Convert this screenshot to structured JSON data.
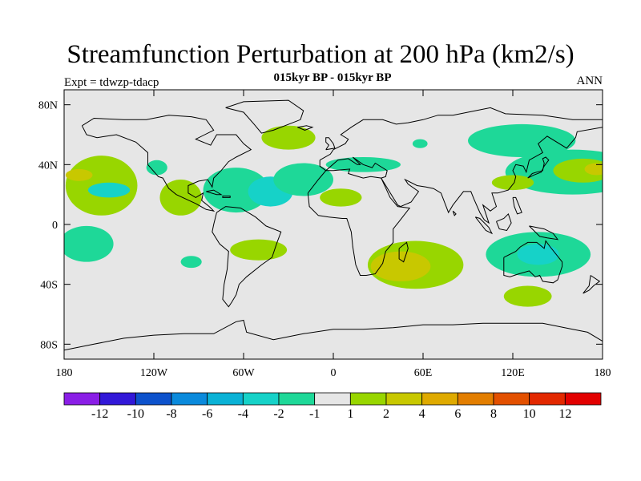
{
  "chart_data": {
    "type": "heatmap",
    "title": "Streamfunction Perturbation at 200 hPa (km2/s)",
    "subtitle": "015kyr BP - 015kyr BP",
    "left_label": "Expt = tdwzp-tdacp",
    "right_label": "ANN",
    "xlabel": "",
    "ylabel": "",
    "x_range": [
      -180,
      180
    ],
    "y_range": [
      -90,
      90
    ],
    "x_ticks": [
      {
        "value": -180,
        "label": "180"
      },
      {
        "value": -120,
        "label": "120W"
      },
      {
        "value": -60,
        "label": "60W"
      },
      {
        "value": 0,
        "label": "0"
      },
      {
        "value": 60,
        "label": "60E"
      },
      {
        "value": 120,
        "label": "120E"
      },
      {
        "value": 180,
        "label": "180"
      }
    ],
    "y_ticks": [
      {
        "value": 80,
        "label": "80N"
      },
      {
        "value": 40,
        "label": "40N"
      },
      {
        "value": 0,
        "label": "0"
      },
      {
        "value": -40,
        "label": "40S"
      },
      {
        "value": -80,
        "label": "80S"
      }
    ],
    "colorbar": {
      "labels": [
        "-12",
        "-10",
        "-8",
        "-6",
        "-4",
        "-2",
        "-1",
        "1",
        "2",
        "4",
        "6",
        "8",
        "10",
        "12"
      ],
      "colors": [
        "#8a1ee6",
        "#3218d8",
        "#0d52cc",
        "#0a8adc",
        "#0ab2d6",
        "#16d2c8",
        "#1ed898",
        "#e6e6e6",
        "#98d600",
        "#c8c800",
        "#dfaa00",
        "#e37e00",
        "#e35000",
        "#e32800",
        "#e20000"
      ]
    },
    "background_color": "#e6e6e6",
    "anomaly_regions": [
      {
        "name": "north-pacific-east",
        "lon": -155,
        "lat": 26,
        "rx": 24,
        "ry": 20,
        "level": 1
      },
      {
        "name": "north-pacific-east-core",
        "lon": -170,
        "lat": 33,
        "rx": 9,
        "ry": 4,
        "level": 2
      },
      {
        "name": "pacific-dateline-north",
        "lon": -150,
        "lat": 23,
        "rx": 14,
        "ry": 5,
        "level": -2
      },
      {
        "name": "east-pacific-blob",
        "lon": -118,
        "lat": 38,
        "rx": 7,
        "ry": 5,
        "level": -1
      },
      {
        "name": "central-america",
        "lon": -102,
        "lat": 18,
        "rx": 14,
        "ry": 12,
        "level": 1
      },
      {
        "name": "caribbean-atlantic",
        "lon": -65,
        "lat": 23,
        "rx": 22,
        "ry": 15,
        "level": -1
      },
      {
        "name": "tropical-atlantic-core",
        "lon": -42,
        "lat": 22,
        "rx": 15,
        "ry": 10,
        "level": -2
      },
      {
        "name": "north-atlantic-band",
        "lon": -20,
        "lat": 30,
        "rx": 20,
        "ry": 11,
        "level": -1
      },
      {
        "name": "mediterranean-band",
        "lon": 20,
        "lat": 40,
        "rx": 25,
        "ry": 5,
        "level": -1
      },
      {
        "name": "north-atlantic-high",
        "lon": -30,
        "lat": 58,
        "rx": 18,
        "ry": 8,
        "level": 1
      },
      {
        "name": "west-africa",
        "lon": 5,
        "lat": 18,
        "rx": 14,
        "ry": 6,
        "level": 1
      },
      {
        "name": "iceland-small",
        "lon": 58,
        "lat": 54,
        "rx": 5,
        "ry": 3,
        "level": -1
      },
      {
        "name": "siberia",
        "lon": 126,
        "lat": 56,
        "rx": 36,
        "ry": 11,
        "level": -1
      },
      {
        "name": "north-pacific-west",
        "lon": 160,
        "lat": 35,
        "rx": 45,
        "ry": 15,
        "level": -1
      },
      {
        "name": "north-pacific-west-core",
        "lon": 167,
        "lat": 36,
        "rx": 20,
        "ry": 8,
        "level": 1
      },
      {
        "name": "north-pacific-west-center",
        "lon": 176,
        "lat": 37,
        "rx": 8,
        "ry": 4,
        "level": 2
      },
      {
        "name": "east-asia",
        "lon": 120,
        "lat": 28,
        "rx": 14,
        "ry": 5,
        "level": 1
      },
      {
        "name": "south-indian-ocean",
        "lon": 55,
        "lat": -27,
        "rx": 32,
        "ry": 16,
        "level": 1
      },
      {
        "name": "south-indian-ocean-core",
        "lon": 45,
        "lat": -28,
        "rx": 20,
        "ry": 10,
        "level": 2
      },
      {
        "name": "south-atlantic",
        "lon": -50,
        "lat": -17,
        "rx": 19,
        "ry": 7,
        "level": 1
      },
      {
        "name": "south-pacific-small",
        "lon": -95,
        "lat": -25,
        "rx": 7,
        "ry": 4,
        "level": -1
      },
      {
        "name": "east-pacific-south",
        "lon": -165,
        "lat": -13,
        "rx": 18,
        "ry": 12,
        "level": -1
      },
      {
        "name": "australia",
        "lon": 137,
        "lat": -20,
        "rx": 35,
        "ry": 15,
        "level": -1
      },
      {
        "name": "australia-core",
        "lon": 137,
        "lat": -20,
        "rx": 14,
        "ry": 7,
        "level": -2
      },
      {
        "name": "tasman",
        "lon": 130,
        "lat": -48,
        "rx": 16,
        "ry": 7,
        "level": 1
      }
    ]
  }
}
